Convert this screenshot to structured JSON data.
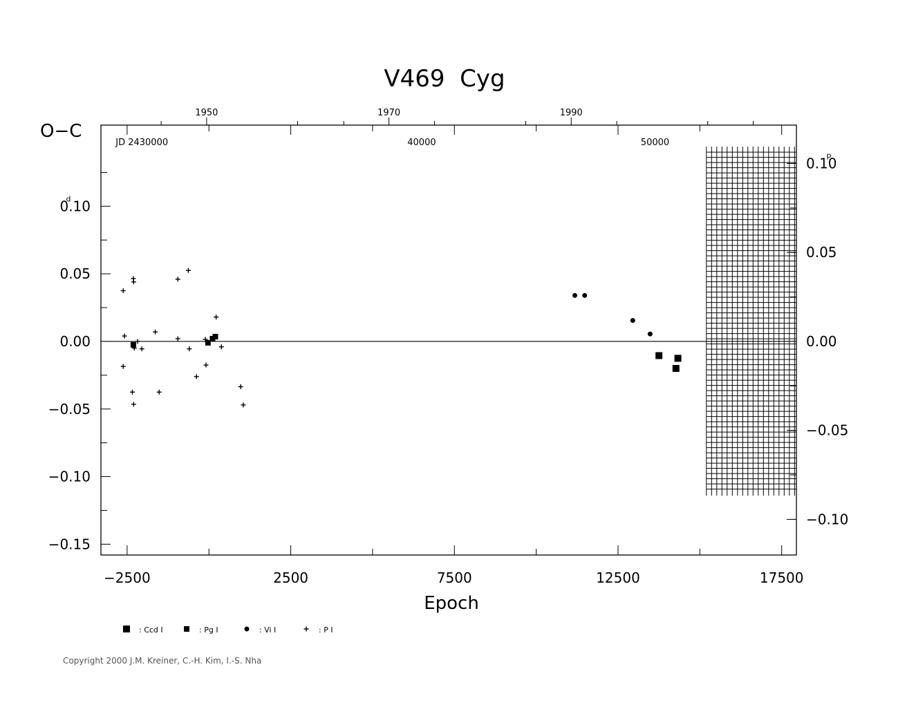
{
  "chart_data": {
    "type": "scatter",
    "title": "V469  Cyg",
    "xlabel": "Epoch",
    "ylabel": "O−C",
    "xlim": [
      -3300,
      17950
    ],
    "ylim": [
      -0.158,
      0.16
    ],
    "x_ticks": [
      {
        "value": -2500,
        "label": "−2500"
      },
      {
        "value": 2500,
        "label": "2500"
      },
      {
        "value": 7500,
        "label": "7500"
      },
      {
        "value": 12500,
        "label": "12500"
      },
      {
        "value": 17500,
        "label": "17500"
      }
    ],
    "y_ticks": [
      {
        "value": 0.1,
        "label": "0.10",
        "unit": "d"
      },
      {
        "value": 0.05,
        "label": "0.05"
      },
      {
        "value": 0.0,
        "label": "0.00"
      },
      {
        "value": -0.05,
        "label": "−0.05"
      },
      {
        "value": -0.1,
        "label": "−0.10"
      },
      {
        "value": -0.15,
        "label": "−0.15"
      }
    ],
    "right_axis": {
      "unit": "p",
      "ticks": [
        {
          "value": 0.1,
          "label": "0.10",
          "unit": "p"
        },
        {
          "value": 0.05,
          "label": "0.05"
        },
        {
          "value": 0.0,
          "label": "0.00"
        },
        {
          "value": -0.05,
          "label": "−0.05"
        },
        {
          "value": -0.1,
          "label": "−0.10"
        }
      ]
    },
    "top_axis_years": [
      {
        "label": "1950",
        "epoch": -70
      },
      {
        "label": "1970",
        "epoch": 5500
      },
      {
        "label": "1990",
        "epoch": 11070
      }
    ],
    "jd_labels": [
      {
        "label": "JD  2430000",
        "epoch": -2050
      },
      {
        "label": "40000",
        "epoch": 6500
      },
      {
        "label": "50000",
        "epoch": 13630
      }
    ],
    "hatched_region": {
      "x_from": 15200,
      "x_to": 17950,
      "y_from": -0.11,
      "y_to": 0.14
    },
    "zero_line": 0,
    "series": [
      {
        "name": ": Ccd  I",
        "marker": "square-large",
        "points": [
          [
            13750,
            -0.0105
          ],
          [
            14270,
            -0.02
          ],
          [
            14330,
            -0.0125
          ]
        ]
      },
      {
        "name": ": Pg  I",
        "marker": "square-small",
        "points": [
          [
            -2310,
            -0.0025
          ],
          [
            -30,
            -0.001
          ],
          [
            110,
            0.002
          ],
          [
            195,
            0.0035
          ]
        ]
      },
      {
        "name": ": Vi  I",
        "marker": "circle",
        "points": [
          [
            11180,
            0.034
          ],
          [
            11480,
            0.034
          ],
          [
            12950,
            0.0155
          ],
          [
            13480,
            0.0055
          ]
        ]
      },
      {
        "name": ": P  I",
        "marker": "plus",
        "points": [
          [
            -2620,
            0.0375
          ],
          [
            -2580,
            0.004
          ],
          [
            -2620,
            -0.0185
          ],
          [
            -2310,
            0.0465
          ],
          [
            -2300,
            0.044
          ],
          [
            -2340,
            -0.0375
          ],
          [
            -2300,
            -0.0465
          ],
          [
            -2180,
            0.0
          ],
          [
            -2050,
            -0.0055
          ],
          [
            -2280,
            -0.005
          ],
          [
            -1640,
            0.007
          ],
          [
            -1520,
            -0.0375
          ],
          [
            -950,
            0.046
          ],
          [
            -950,
            0.002
          ],
          [
            -630,
            0.0525
          ],
          [
            -600,
            -0.0055
          ],
          [
            -380,
            -0.026
          ],
          [
            -110,
            0.0015
          ],
          [
            -90,
            -0.0175
          ],
          [
            220,
            0.018
          ],
          [
            380,
            -0.004
          ],
          [
            970,
            -0.0335
          ],
          [
            1050,
            -0.047
          ]
        ]
      }
    ]
  },
  "copyright": "Copyright 2000 J.M. Kreiner, C.-H. Kim, I.-S. Nha"
}
